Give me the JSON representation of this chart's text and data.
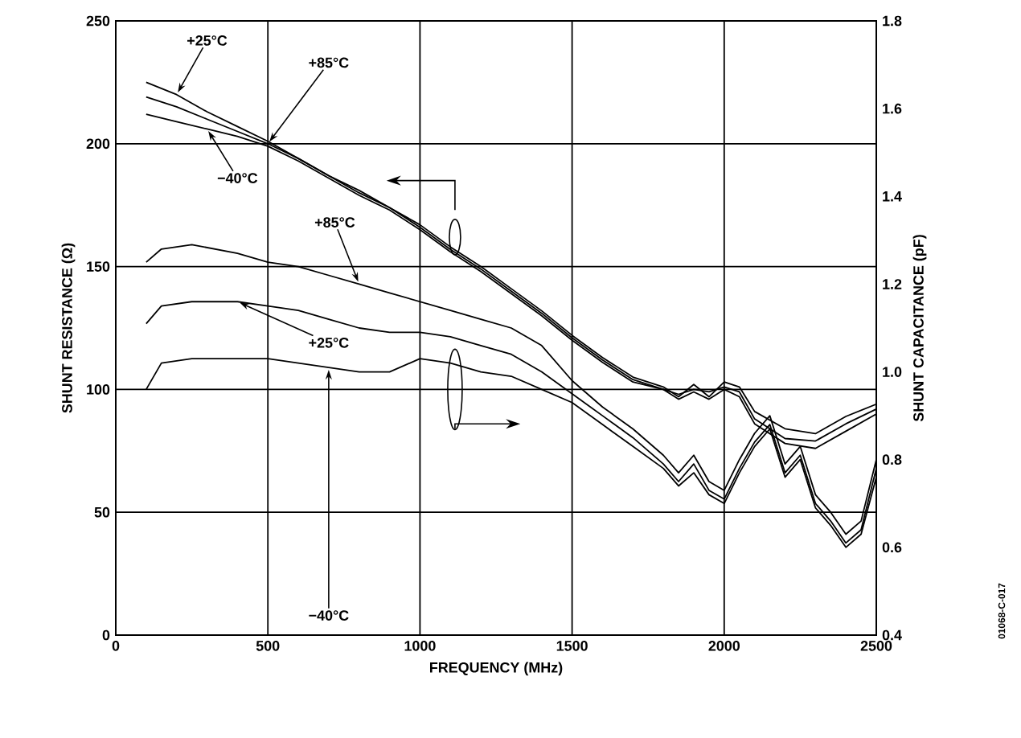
{
  "chart_data": {
    "type": "line",
    "xlabel": "FREQUENCY (MHz)",
    "ylabel": "SHUNT RESISTANCE (Ω)",
    "y2label": "SHUNT CAPACITANCE (pF)",
    "xlim": [
      0,
      2500
    ],
    "xticks": [
      0,
      500,
      1000,
      1500,
      2000,
      2500
    ],
    "ylim": [
      0,
      250
    ],
    "yticks": [
      0,
      50,
      100,
      150,
      200,
      250
    ],
    "y2lim": [
      0.4,
      1.8
    ],
    "y2ticks": [
      {
        "value": 0.4,
        "label": "0.4"
      },
      {
        "value": 0.6,
        "label": "0.6"
      },
      {
        "value": 0.8,
        "label": "0.8"
      },
      {
        "value": 1.0,
        "label": "1.0"
      },
      {
        "value": 1.2,
        "label": "1.2"
      },
      {
        "value": 1.4,
        "label": "1.4"
      },
      {
        "value": 1.6,
        "label": "1.6"
      },
      {
        "value": 1.8,
        "label": "1.8"
      }
    ],
    "grid": true,
    "marker": "none",
    "line_style": "solid",
    "annotations": [
      "01068-C-017"
    ],
    "series": [
      {
        "name": "+25°C",
        "color": "#000000",
        "axis": "y",
        "x": [
          100,
          200,
          300,
          400,
          500,
          600,
          700,
          800,
          900,
          1000,
          1100,
          1200,
          1300,
          1400,
          1500,
          1600,
          1700,
          1800,
          1850,
          1900,
          1950,
          2000,
          2050,
          2100,
          2200,
          2300,
          2400,
          2500
        ],
        "values": [
          225,
          220,
          213,
          207,
          201,
          194,
          187,
          181,
          174,
          167,
          158,
          150,
          141,
          132,
          122,
          113,
          105,
          101,
          97,
          102,
          97,
          103,
          101,
          91,
          84,
          82,
          89,
          94
        ]
      },
      {
        "name": "+85°C",
        "color": "#000000",
        "axis": "y",
        "x": [
          100,
          200,
          300,
          400,
          500,
          600,
          700,
          800,
          900,
          1000,
          1100,
          1200,
          1300,
          1400,
          1500,
          1600,
          1700,
          1800,
          1850,
          1900,
          1950,
          2000,
          2050,
          2100,
          2200,
          2300,
          2400,
          2500
        ],
        "values": [
          219,
          215,
          210,
          205,
          200,
          194,
          187,
          180,
          174,
          166,
          157,
          149,
          140,
          131,
          121,
          112,
          104,
          100,
          98,
          100,
          99,
          101,
          99,
          88,
          80,
          79,
          86,
          92
        ]
      },
      {
        "name": "−40°C",
        "color": "#000000",
        "axis": "y",
        "x": [
          100,
          200,
          300,
          400,
          500,
          600,
          700,
          800,
          900,
          1000,
          1100,
          1200,
          1300,
          1400,
          1500,
          1600,
          1700,
          1800,
          1850,
          1900,
          1950,
          2000,
          2050,
          2100,
          2200,
          2300,
          2400,
          2500
        ],
        "values": [
          212,
          209,
          206,
          203,
          199,
          193,
          186,
          179,
          173,
          165,
          156,
          148,
          139,
          130,
          120,
          111,
          103,
          100,
          96,
          99,
          96,
          100,
          97,
          86,
          78,
          76,
          83,
          90
        ]
      },
      {
        "name": "+85°C",
        "color": "#000000",
        "axis": "y2",
        "x": [
          100,
          150,
          250,
          400,
          500,
          600,
          700,
          800,
          900,
          1000,
          1100,
          1200,
          1300,
          1400,
          1500,
          1600,
          1700,
          1800,
          1850,
          1900,
          1950,
          2000,
          2050,
          2100,
          2150,
          2200,
          2250,
          2300,
          2350,
          2400,
          2450,
          2500
        ],
        "values": [
          1.25,
          1.28,
          1.29,
          1.27,
          1.25,
          1.24,
          1.22,
          1.2,
          1.18,
          1.16,
          1.14,
          1.12,
          1.1,
          1.06,
          0.98,
          0.92,
          0.87,
          0.81,
          0.77,
          0.81,
          0.75,
          0.73,
          0.8,
          0.86,
          0.9,
          0.79,
          0.83,
          0.72,
          0.68,
          0.63,
          0.66,
          0.8
        ]
      },
      {
        "name": "+25°C",
        "color": "#000000",
        "axis": "y2",
        "x": [
          100,
          150,
          250,
          400,
          500,
          600,
          700,
          800,
          900,
          1000,
          1100,
          1200,
          1300,
          1400,
          1500,
          1600,
          1700,
          1800,
          1850,
          1900,
          1950,
          2000,
          2050,
          2100,
          2150,
          2200,
          2250,
          2300,
          2350,
          2400,
          2450,
          2500
        ],
        "values": [
          1.11,
          1.15,
          1.16,
          1.16,
          1.15,
          1.14,
          1.12,
          1.1,
          1.09,
          1.09,
          1.08,
          1.06,
          1.04,
          1.0,
          0.95,
          0.9,
          0.85,
          0.79,
          0.75,
          0.79,
          0.73,
          0.71,
          0.78,
          0.84,
          0.88,
          0.77,
          0.81,
          0.7,
          0.66,
          0.61,
          0.64,
          0.78
        ]
      },
      {
        "name": "−40°C",
        "color": "#000000",
        "axis": "y2",
        "x": [
          100,
          150,
          250,
          400,
          500,
          600,
          700,
          800,
          900,
          1000,
          1100,
          1200,
          1300,
          1400,
          1500,
          1600,
          1700,
          1800,
          1850,
          1900,
          1950,
          2000,
          2050,
          2100,
          2150,
          2200,
          2250,
          2300,
          2350,
          2400,
          2450,
          2500
        ],
        "values": [
          0.96,
          1.02,
          1.03,
          1.03,
          1.03,
          1.02,
          1.01,
          1.0,
          1.0,
          1.03,
          1.02,
          1.0,
          0.99,
          0.96,
          0.93,
          0.88,
          0.83,
          0.78,
          0.74,
          0.77,
          0.72,
          0.7,
          0.77,
          0.83,
          0.87,
          0.76,
          0.8,
          0.69,
          0.65,
          0.6,
          0.63,
          0.76
        ]
      }
    ]
  }
}
